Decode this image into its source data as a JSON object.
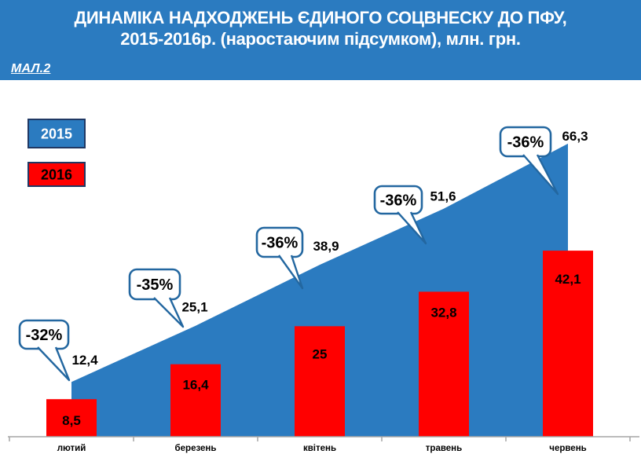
{
  "header": {
    "title_line1": "ДИНАМІКА НАДХОДЖЕНЬ ЄДИНОГО СОЦВНЕСКУ ДО ПФУ,",
    "title_line2": "2015-2016р.  (наростаючим підсумком), млн. грн.",
    "figure_label": "МАЛ.2"
  },
  "colors": {
    "banner_blue": "#2B7BC0",
    "area_blue": "#2B7BC0",
    "bar_red": "#FF0000",
    "callout_border": "#2367A0",
    "callout_fill": "#FFFFFF",
    "legend_border": "#1F3864",
    "axis_gray": "#A6A6A6",
    "label_black": "#000000",
    "title_white": "#FFFFFF"
  },
  "legend": {
    "items": [
      {
        "label": "2015",
        "fill": "#2B7BC0",
        "text_color": "#FFFFFF"
      },
      {
        "label": "2016",
        "fill": "#FF0000",
        "text_color": "#000000"
      }
    ]
  },
  "chart_data": {
    "type": "area+bar combo",
    "title": "ДИНАМІКА НАДХОДЖЕНЬ ЄДИНОГО СОЦВНЕСКУ ДО ПФУ, 2015-2016р. (наростаючим підсумком), млн. грн.",
    "xlabel": "",
    "ylabel": "млн. грн.",
    "ylim": [
      0,
      70
    ],
    "grid": false,
    "legend_position": "top-left",
    "categories": [
      "лютий",
      "березень",
      "квітень",
      "травень",
      "червень"
    ],
    "series": [
      {
        "name": "2015",
        "type": "area",
        "color": "#2B7BC0",
        "values": [
          12.4,
          25.1,
          38.9,
          51.6,
          66.3
        ],
        "value_labels": [
          "12,4",
          "25,1",
          "38,9",
          "51,6",
          "66,3"
        ]
      },
      {
        "name": "2016",
        "type": "bar",
        "color": "#FF0000",
        "values": [
          8.5,
          16.4,
          25,
          32.8,
          42.1
        ],
        "value_labels": [
          "8,5",
          "16,4",
          "25",
          "32,8",
          "42,1"
        ]
      }
    ],
    "callout_labels": [
      "-32%",
      "-35%",
      "-36%",
      "-36%",
      "-36%"
    ]
  }
}
